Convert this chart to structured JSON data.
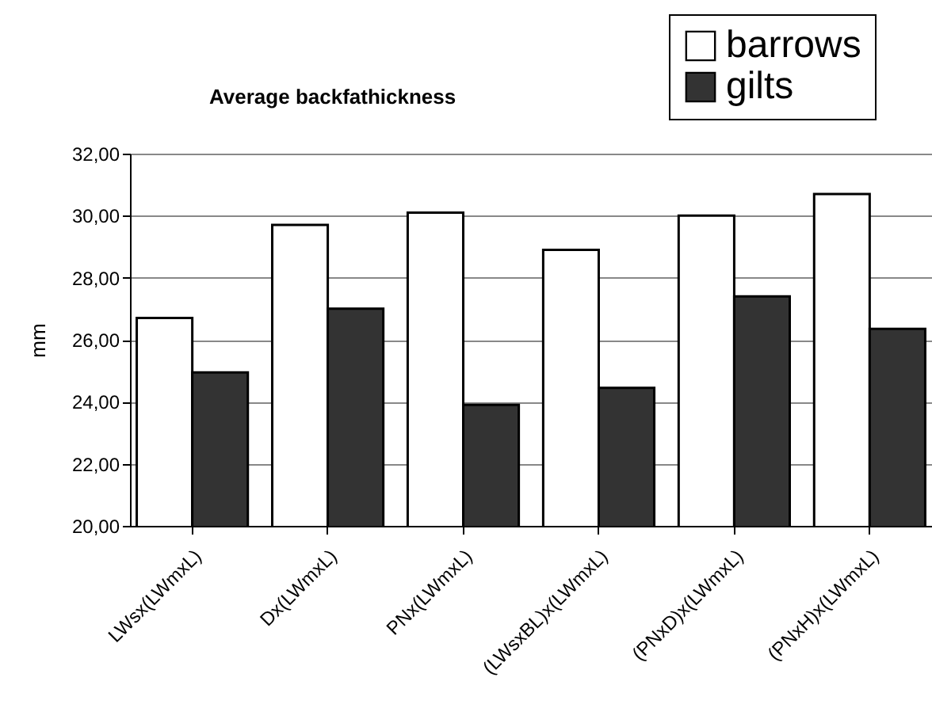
{
  "chart_data": {
    "type": "bar",
    "title": "Average backfathickness",
    "ylabel": "mm",
    "categories": [
      "LWsx(LWmxL)",
      "Dx(LWmxL)",
      "PNx(LWmxL)",
      "(LWsxBL)x(LWmxL)",
      "(PNxD)x(LWmxL)",
      "(PNxH)x(LWmxL)"
    ],
    "series": [
      {
        "name": "barrows",
        "color": "#ffffff",
        "values": [
          26.7,
          29.7,
          30.1,
          28.9,
          30.0,
          30.7
        ]
      },
      {
        "name": "gilts",
        "color": "#333333",
        "values": [
          24.95,
          27.0,
          23.9,
          24.45,
          27.4,
          26.35
        ]
      }
    ],
    "ylim": [
      20,
      32
    ],
    "yticks": [
      {
        "value": 20,
        "label": "20,00"
      },
      {
        "value": 22,
        "label": "22,00"
      },
      {
        "value": 24,
        "label": "24,00"
      },
      {
        "value": 26,
        "label": "26,00"
      },
      {
        "value": 28,
        "label": "28,00"
      },
      {
        "value": 30,
        "label": "30,00"
      },
      {
        "value": 32,
        "label": "32,00"
      }
    ],
    "grid": "y",
    "legend": "top right"
  }
}
